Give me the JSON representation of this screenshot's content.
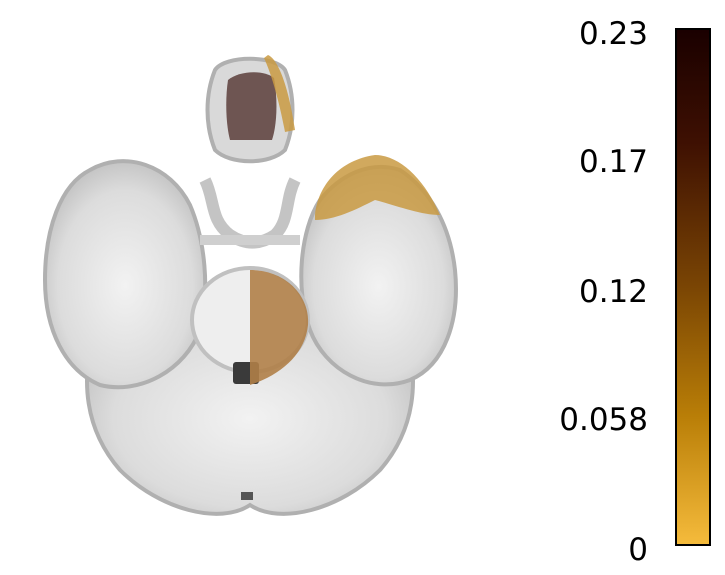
{
  "figure": {
    "colormap": {
      "min": 0,
      "max": 0.23,
      "ticks": [
        "0.23",
        "0.17",
        "0.12",
        "0.058",
        "0"
      ],
      "colors": [
        "#f5bb3c",
        "#b97e07",
        "#7a4504",
        "#3e1002",
        "#1a0000"
      ]
    },
    "overlay_regions": [
      {
        "name": "olfactory-region",
        "color": "#5a3d3a"
      },
      {
        "name": "temporal-pole-region",
        "color": "#c99a42"
      },
      {
        "name": "pons-region",
        "color": "#b08048"
      }
    ],
    "colors": {
      "brain_light": "#eeeeee",
      "brain_mid": "#c8c8c8",
      "brain_edge": "#a8a8a8",
      "ventricle": "#3a3a3a"
    }
  }
}
